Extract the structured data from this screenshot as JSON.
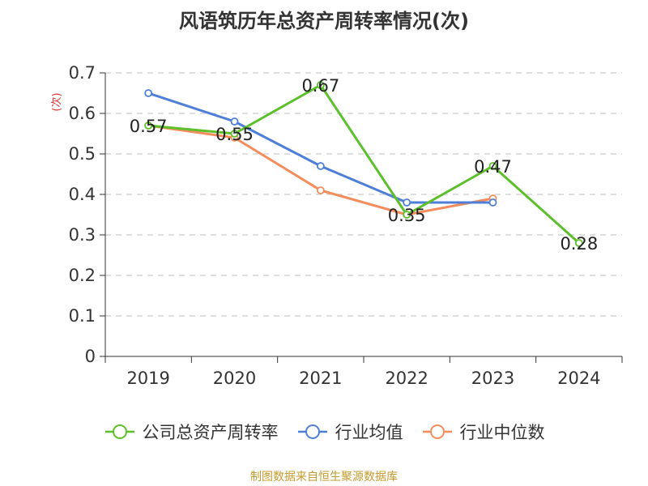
{
  "chart_data": {
    "type": "line",
    "title": "风语筑历年总资产周转率情况(次)",
    "ylabel": "(次)",
    "xlabel": "",
    "categories": [
      "2019",
      "2020",
      "2021",
      "2022",
      "2023",
      "2024"
    ],
    "ylim": [
      0,
      0.7
    ],
    "yticks": [
      0,
      0.1,
      0.2,
      0.3,
      0.4,
      0.5,
      0.6,
      0.7
    ],
    "ytick_labels": [
      "0",
      "0.1",
      "0.2",
      "0.3",
      "0.4",
      "0.5",
      "0.6",
      "0.7"
    ],
    "grid": true,
    "legend_position": "bottom",
    "series": [
      {
        "name": "公司总资产周转率",
        "color": "#5dbf2c",
        "values": [
          0.57,
          0.55,
          0.67,
          0.35,
          0.47,
          0.28
        ],
        "labels": [
          "0.57",
          "0.55",
          "0.67",
          "0.35",
          "0.47",
          "0.28"
        ]
      },
      {
        "name": "行业均值",
        "color": "#4e7fd8",
        "values": [
          0.65,
          0.58,
          0.47,
          0.38,
          0.38,
          null
        ]
      },
      {
        "name": "行业中位数",
        "color": "#f48c5c",
        "values": [
          0.57,
          0.54,
          0.41,
          0.35,
          0.39,
          null
        ]
      }
    ]
  },
  "source_note": "制图数据来自恒生聚源数据库"
}
